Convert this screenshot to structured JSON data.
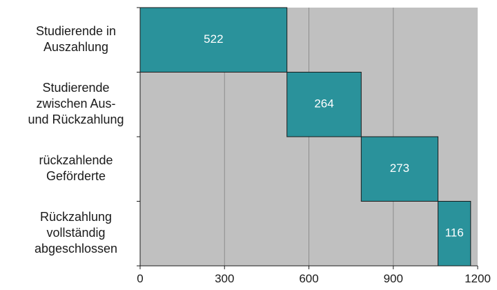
{
  "chart_data": {
    "type": "bar",
    "subtype": "waterfall-horizontal",
    "categories": [
      [
        "Studierende in",
        "Auszahlung"
      ],
      [
        "Studierende",
        "zwischen Aus-",
        "und Rückzahlung"
      ],
      [
        "rückzahlende",
        "Geförderte"
      ],
      [
        "Rückzahlung",
        "vollständig",
        "abgeschlossen"
      ]
    ],
    "values": [
      522,
      264,
      273,
      116
    ],
    "value_labels": [
      "522",
      "264",
      "273",
      "116"
    ],
    "xlim": [
      0,
      1200
    ],
    "xticks": [
      0,
      300,
      600,
      900,
      1200
    ],
    "xtick_labels": [
      "0",
      "300",
      "600",
      "900",
      "1200"
    ],
    "title": "",
    "xlabel": "",
    "ylabel": "",
    "grid": "vertical",
    "legend": "none",
    "colors": {
      "bar": "#2a929b",
      "bar_stroke": "#1a1a1a",
      "plot_background": "#c0c0c0",
      "grid": "#8c8c8c",
      "value_label": "#ffffff",
      "text": "#1a1a1a"
    }
  }
}
